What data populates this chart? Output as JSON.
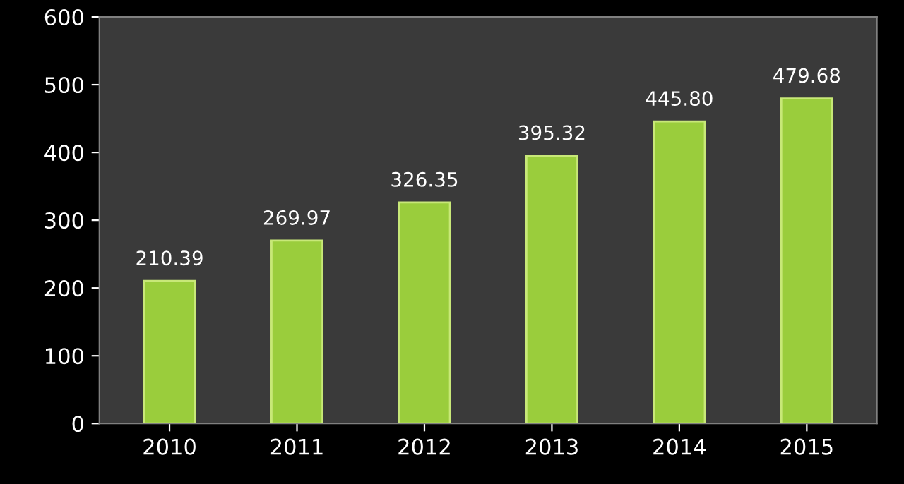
{
  "chart_data": {
    "type": "bar",
    "categories": [
      "2010",
      "2011",
      "2012",
      "2013",
      "2014",
      "2015"
    ],
    "values": [
      210.39,
      269.97,
      326.35,
      395.32,
      445.8,
      479.68
    ],
    "value_labels": [
      "210.39",
      "269.97",
      "326.35",
      "395.32",
      "445.80",
      "479.68"
    ],
    "color": "#9acd3c",
    "ylim": [
      0,
      600
    ],
    "yticks": [
      0,
      100,
      200,
      300,
      400,
      500,
      600
    ],
    "grid": false
  }
}
